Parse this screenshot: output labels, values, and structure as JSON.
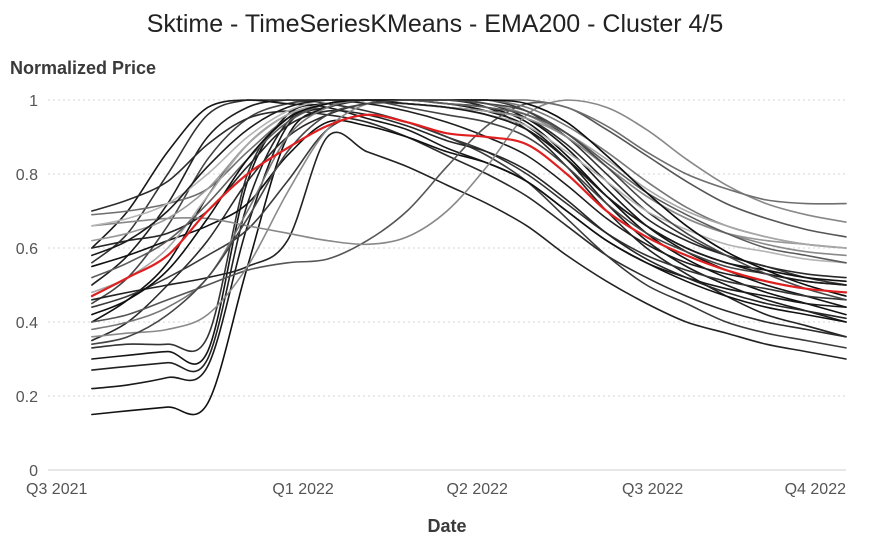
{
  "chart_data": {
    "type": "line",
    "title": "Sktime - TimeSeriesKMeans - EMA200 - Cluster 4/5",
    "ylabel": "Normalized Price",
    "xlabel": "Date",
    "ylim": [
      0,
      1
    ],
    "xlim": [
      0,
      1
    ],
    "x_ticks": [
      {
        "label": "Q3 2021",
        "pos": 0.0
      },
      {
        "label": "Q1 2022",
        "pos": 0.3197
      },
      {
        "label": "Q2 2022",
        "pos": 0.5379
      },
      {
        "label": "Q3 2022",
        "pos": 0.7577
      },
      {
        "label": "Q4 2022",
        "pos": 1.0
      }
    ],
    "y_ticks": [
      0,
      0.2,
      0.4,
      0.6,
      0.8,
      1
    ],
    "grid": "horizontal dotted",
    "x_sample": [
      0.055,
      0.1,
      0.15,
      0.2,
      0.25,
      0.3,
      0.35,
      0.4,
      0.45,
      0.5,
      0.55,
      0.6,
      0.65,
      0.7,
      0.75,
      0.8,
      0.85,
      0.9,
      0.95,
      1.0
    ],
    "series": [
      {
        "color": "#e02020",
        "width": 2.2,
        "values": [
          0.47,
          0.52,
          0.58,
          0.7,
          0.8,
          0.87,
          0.93,
          0.96,
          0.94,
          0.91,
          0.9,
          0.88,
          0.8,
          0.7,
          0.63,
          0.58,
          0.54,
          0.51,
          0.49,
          0.48
        ]
      },
      {
        "color": "#111111",
        "width": 1.6,
        "values": [
          0.15,
          0.16,
          0.17,
          0.18,
          0.55,
          0.9,
          0.98,
          1.0,
          1.0,
          0.99,
          0.98,
          0.94,
          0.85,
          0.74,
          0.64,
          0.57,
          0.52,
          0.48,
          0.45,
          0.42
        ]
      },
      {
        "color": "#1a1a1a",
        "width": 1.6,
        "values": [
          0.22,
          0.23,
          0.25,
          0.28,
          0.66,
          0.93,
          0.98,
          1.0,
          1.0,
          0.99,
          0.97,
          0.93,
          0.84,
          0.72,
          0.62,
          0.55,
          0.5,
          0.46,
          0.43,
          0.4
        ]
      },
      {
        "color": "#222222",
        "width": 1.6,
        "values": [
          0.27,
          0.28,
          0.29,
          0.3,
          0.72,
          0.94,
          0.98,
          1.0,
          1.0,
          1.0,
          0.98,
          0.92,
          0.82,
          0.7,
          0.6,
          0.53,
          0.47,
          0.42,
          0.39,
          0.36
        ]
      },
      {
        "color": "#151515",
        "width": 1.6,
        "values": [
          0.3,
          0.31,
          0.32,
          0.32,
          0.78,
          0.96,
          0.99,
          1.0,
          1.0,
          1.0,
          0.99,
          0.95,
          0.87,
          0.76,
          0.66,
          0.59,
          0.54,
          0.5,
          0.47,
          0.44
        ]
      },
      {
        "color": "#333333",
        "width": 1.6,
        "values": [
          0.33,
          0.34,
          0.34,
          0.36,
          0.8,
          0.95,
          0.99,
          1.0,
          1.0,
          1.0,
          1.0,
          0.97,
          0.9,
          0.8,
          0.7,
          0.63,
          0.58,
          0.55,
          0.52,
          0.5
        ]
      },
      {
        "color": "#2a2a2a",
        "width": 1.6,
        "values": [
          0.35,
          0.4,
          0.5,
          0.62,
          0.78,
          0.9,
          0.96,
          0.99,
          0.99,
          0.98,
          0.97,
          0.95,
          0.88,
          0.78,
          0.68,
          0.62,
          0.58,
          0.55,
          0.53,
          0.52
        ]
      },
      {
        "color": "#111111",
        "width": 1.6,
        "values": [
          0.4,
          0.46,
          0.56,
          0.74,
          0.88,
          0.96,
          0.99,
          1.0,
          0.99,
          0.98,
          0.96,
          0.92,
          0.84,
          0.74,
          0.66,
          0.6,
          0.56,
          0.54,
          0.52,
          0.51
        ]
      },
      {
        "color": "#444444",
        "width": 1.6,
        "values": [
          0.45,
          0.52,
          0.66,
          0.84,
          0.95,
          0.99,
          1.0,
          1.0,
          0.98,
          0.96,
          0.94,
          0.9,
          0.82,
          0.72,
          0.64,
          0.59,
          0.55,
          0.53,
          0.51,
          0.5
        ]
      },
      {
        "color": "#1e1e1e",
        "width": 1.6,
        "values": [
          0.5,
          0.58,
          0.72,
          0.9,
          0.98,
          1.0,
          1.0,
          0.99,
          0.97,
          0.94,
          0.9,
          0.85,
          0.77,
          0.68,
          0.61,
          0.56,
          0.53,
          0.51,
          0.49,
          0.48
        ]
      },
      {
        "color": "#333333",
        "width": 1.6,
        "values": [
          0.56,
          0.64,
          0.8,
          0.96,
          1.0,
          1.0,
          0.99,
          0.97,
          0.94,
          0.9,
          0.86,
          0.8,
          0.72,
          0.64,
          0.58,
          0.54,
          0.51,
          0.49,
          0.47,
          0.46
        ]
      },
      {
        "color": "#181818",
        "width": 1.6,
        "values": [
          0.6,
          0.7,
          0.86,
          0.98,
          1.0,
          0.99,
          0.98,
          0.95,
          0.92,
          0.87,
          0.83,
          0.78,
          0.7,
          0.62,
          0.56,
          0.52,
          0.49,
          0.47,
          0.45,
          0.44
        ]
      },
      {
        "color": "#2c2c2c",
        "width": 1.6,
        "values": [
          0.7,
          0.73,
          0.78,
          0.88,
          0.95,
          0.97,
          0.96,
          0.94,
          0.9,
          0.85,
          0.8,
          0.74,
          0.66,
          0.58,
          0.52,
          0.47,
          0.43,
          0.4,
          0.38,
          0.36
        ]
      },
      {
        "color": "#3b3b3b",
        "width": 1.6,
        "values": [
          0.44,
          0.47,
          0.52,
          0.58,
          0.65,
          0.78,
          0.92,
          0.96,
          0.94,
          0.9,
          0.85,
          0.78,
          0.68,
          0.58,
          0.5,
          0.45,
          0.4,
          0.37,
          0.35,
          0.33
        ]
      },
      {
        "color": "#222222",
        "width": 1.6,
        "values": [
          0.46,
          0.48,
          0.5,
          0.52,
          0.55,
          0.62,
          0.9,
          0.86,
          0.82,
          0.77,
          0.72,
          0.66,
          0.58,
          0.51,
          0.45,
          0.4,
          0.37,
          0.34,
          0.32,
          0.3
        ]
      },
      {
        "color": "#111111",
        "width": 1.6,
        "values": [
          0.55,
          0.58,
          0.62,
          0.66,
          0.72,
          0.85,
          0.94,
          0.93,
          0.9,
          0.86,
          0.83,
          0.78,
          0.7,
          0.62,
          0.56,
          0.51,
          0.47,
          0.44,
          0.42,
          0.4
        ]
      },
      {
        "color": "#262626",
        "width": 1.6,
        "values": [
          0.6,
          0.62,
          0.64,
          0.7,
          0.82,
          0.93,
          0.97,
          0.96,
          0.93,
          0.89,
          0.86,
          0.81,
          0.73,
          0.64,
          0.57,
          0.52,
          0.48,
          0.45,
          0.43,
          0.41
        ]
      },
      {
        "color": "#555555",
        "width": 1.6,
        "values": [
          0.4,
          0.42,
          0.46,
          0.5,
          0.54,
          0.56,
          0.57,
          0.62,
          0.7,
          0.82,
          0.93,
          0.99,
          0.98,
          0.92,
          0.85,
          0.78,
          0.72,
          0.68,
          0.65,
          0.63
        ]
      },
      {
        "color": "#777777",
        "width": 1.6,
        "values": [
          0.38,
          0.4,
          0.44,
          0.52,
          0.7,
          0.9,
          0.98,
          1.0,
          1.0,
          1.0,
          1.0,
          0.98,
          0.93,
          0.86,
          0.78,
          0.71,
          0.66,
          0.63,
          0.61,
          0.6
        ]
      },
      {
        "color": "#888888",
        "width": 1.6,
        "values": [
          0.66,
          0.67,
          0.68,
          0.68,
          0.66,
          0.64,
          0.62,
          0.61,
          0.63,
          0.7,
          0.82,
          0.96,
          1.0,
          0.98,
          0.92,
          0.84,
          0.77,
          0.72,
          0.69,
          0.67
        ]
      },
      {
        "color": "#6e6e6e",
        "width": 1.6,
        "values": [
          0.69,
          0.7,
          0.72,
          0.76,
          0.86,
          0.95,
          0.99,
          1.0,
          1.0,
          1.0,
          1.0,
          1.0,
          0.98,
          0.93,
          0.86,
          0.8,
          0.76,
          0.73,
          0.72,
          0.72
        ]
      },
      {
        "color": "#999999",
        "width": 1.6,
        "values": [
          0.62,
          0.64,
          0.68,
          0.76,
          0.88,
          0.96,
          0.99,
          1.0,
          0.99,
          0.98,
          0.97,
          0.95,
          0.9,
          0.82,
          0.74,
          0.68,
          0.64,
          0.62,
          0.61,
          0.6
        ]
      },
      {
        "color": "#a8a8a8",
        "width": 1.6,
        "values": [
          0.48,
          0.52,
          0.6,
          0.74,
          0.88,
          0.96,
          0.99,
          1.0,
          1.0,
          0.99,
          0.98,
          0.96,
          0.91,
          0.84,
          0.76,
          0.7,
          0.66,
          0.63,
          0.61,
          0.6
        ]
      },
      {
        "color": "#8a8a8a",
        "width": 1.6,
        "values": [
          0.36,
          0.37,
          0.38,
          0.42,
          0.55,
          0.75,
          0.92,
          0.99,
          1.0,
          1.0,
          0.99,
          0.96,
          0.9,
          0.82,
          0.74,
          0.68,
          0.64,
          0.61,
          0.59,
          0.58
        ]
      },
      {
        "color": "#b5b5b5",
        "width": 1.6,
        "values": [
          0.66,
          0.68,
          0.72,
          0.8,
          0.9,
          0.97,
          1.0,
          1.0,
          0.99,
          0.98,
          0.96,
          0.93,
          0.86,
          0.78,
          0.7,
          0.65,
          0.61,
          0.59,
          0.57,
          0.56
        ]
      },
      {
        "color": "#5c5c5c",
        "width": 1.6,
        "values": [
          0.52,
          0.56,
          0.62,
          0.72,
          0.84,
          0.94,
          0.99,
          1.0,
          1.0,
          0.99,
          0.98,
          0.96,
          0.91,
          0.83,
          0.75,
          0.69,
          0.64,
          0.6,
          0.58,
          0.56
        ]
      },
      {
        "color": "#0e0e0e",
        "width": 1.6,
        "values": [
          0.42,
          0.46,
          0.54,
          0.68,
          0.84,
          0.95,
          0.99,
          1.0,
          1.0,
          1.0,
          1.0,
          0.99,
          0.94,
          0.85,
          0.75,
          0.66,
          0.59,
          0.54,
          0.5,
          0.47
        ]
      },
      {
        "color": "#1b1b1b",
        "width": 1.6,
        "values": [
          0.58,
          0.62,
          0.7,
          0.82,
          0.92,
          0.98,
          1.0,
          1.0,
          0.99,
          0.98,
          0.96,
          0.92,
          0.84,
          0.74,
          0.66,
          0.6,
          0.56,
          0.53,
          0.51,
          0.5
        ]
      },
      {
        "color": "#474747",
        "width": 1.6,
        "values": [
          0.34,
          0.36,
          0.42,
          0.52,
          0.68,
          0.86,
          0.96,
          0.99,
          1.0,
          1.0,
          0.99,
          0.97,
          0.91,
          0.82,
          0.72,
          0.64,
          0.58,
          0.53,
          0.49,
          0.46
        ]
      }
    ]
  }
}
